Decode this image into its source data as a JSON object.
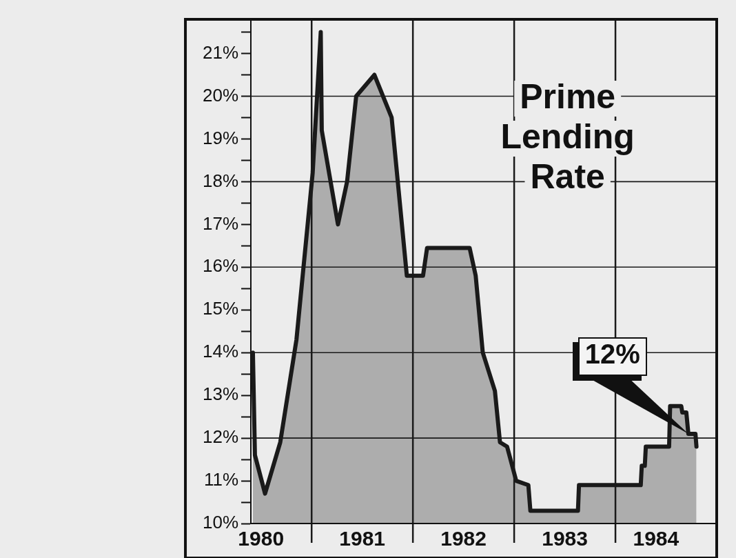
{
  "chart_data": {
    "type": "area",
    "title": "Prime Lending Rate",
    "color": "#1a1a1a",
    "x": [
      1980.42,
      1980.44,
      1980.54,
      1980.69,
      1980.85,
      1981.01,
      1981.09,
      1981.1,
      1981.26,
      1981.35,
      1981.44,
      1981.62,
      1981.79,
      1981.94,
      1982.1,
      1982.14,
      1982.56,
      1982.62,
      1982.69,
      1982.81,
      1982.86,
      1982.93,
      1983.02,
      1983.14,
      1983.16,
      1983.63,
      1983.64,
      1984.25,
      1984.26,
      1984.29,
      1984.3,
      1984.53,
      1984.54,
      1984.65,
      1984.66,
      1984.7,
      1984.72,
      1984.79,
      1984.8
    ],
    "values": [
      14.0,
      11.6,
      10.7,
      11.9,
      14.3,
      18.2,
      21.5,
      19.2,
      17.0,
      18.0,
      20.0,
      20.5,
      19.5,
      15.8,
      15.8,
      16.45,
      16.45,
      15.8,
      14.0,
      13.1,
      11.9,
      11.8,
      11.0,
      10.9,
      10.3,
      10.3,
      10.9,
      10.9,
      11.35,
      11.35,
      11.8,
      11.8,
      12.75,
      12.75,
      12.6,
      12.6,
      12.1,
      12.1,
      11.8
    ],
    "xlim": [
      1980.4,
      1985.0
    ],
    "xticks": [
      {
        "value": 1980.5,
        "label": "1980"
      },
      {
        "value": 1981.5,
        "label": "1981"
      },
      {
        "value": 1982.5,
        "label": "1982"
      },
      {
        "value": 1983.5,
        "label": "1983"
      },
      {
        "value": 1984.4,
        "label": "1984"
      }
    ],
    "ylim": [
      10,
      21.8
    ],
    "yticks": [
      {
        "value": 10,
        "label": "10%"
      },
      {
        "value": 10.5,
        "label": null
      },
      {
        "value": 11,
        "label": "11%"
      },
      {
        "value": 11.5,
        "label": null
      },
      {
        "value": 12,
        "label": "12%"
      },
      {
        "value": 12.5,
        "label": null
      },
      {
        "value": 13,
        "label": "13%"
      },
      {
        "value": 13.5,
        "label": null
      },
      {
        "value": 14,
        "label": "14%"
      },
      {
        "value": 14.5,
        "label": null
      },
      {
        "value": 15,
        "label": "15%"
      },
      {
        "value": 15.5,
        "label": null
      },
      {
        "value": 16,
        "label": "16%"
      },
      {
        "value": 16.5,
        "label": null
      },
      {
        "value": 17,
        "label": "17%"
      },
      {
        "value": 17.5,
        "label": null
      },
      {
        "value": 18,
        "label": "18%"
      },
      {
        "value": 18.5,
        "label": null
      },
      {
        "value": 19,
        "label": "19%"
      },
      {
        "value": 19.5,
        "label": null
      },
      {
        "value": 20,
        "label": "20%"
      },
      {
        "value": 20.5,
        "label": null
      },
      {
        "value": 21,
        "label": "21%"
      },
      {
        "value": 21.5,
        "label": null
      }
    ],
    "ref_lines": [
      {
        "axis": "y",
        "value": 12
      },
      {
        "axis": "y",
        "value": 14
      },
      {
        "axis": "y",
        "value": 16
      },
      {
        "axis": "y",
        "value": 18
      },
      {
        "axis": "y",
        "value": 20
      },
      {
        "axis": "x",
        "value": 1981
      },
      {
        "axis": "x",
        "value": 1982
      },
      {
        "axis": "x",
        "value": 1983
      },
      {
        "axis": "x",
        "value": 1984
      }
    ],
    "annotations": [
      {
        "text": "12%",
        "x": 1984.72,
        "y": 12.1
      }
    ],
    "legend": false,
    "grid": false
  }
}
